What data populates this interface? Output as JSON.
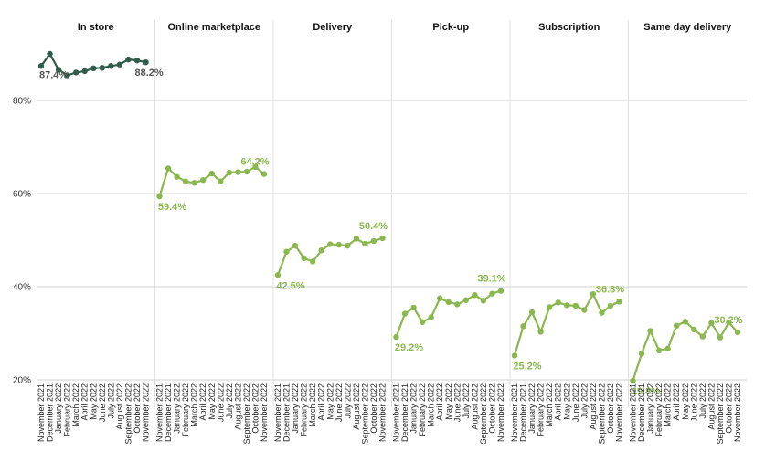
{
  "chart_data": {
    "type": "line",
    "title": "",
    "xlabel": "",
    "ylabel": "",
    "ylim": [
      17,
      92
    ],
    "yticks": [
      20,
      40,
      60,
      80
    ],
    "ytick_labels": [
      "20%",
      "40%",
      "60%",
      "80%"
    ],
    "grid": true,
    "categories": [
      "November 2021",
      "December 2021",
      "January 2022",
      "February 2022",
      "March 2022",
      "April 2022",
      "May 2022",
      "June 2022",
      "July 2022",
      "August 2022",
      "September 2022",
      "October 2022",
      "November 2022"
    ],
    "panels": [
      {
        "title": "In store",
        "color": "#2f5d4a",
        "values": [
          87.4,
          90.0,
          86.6,
          85.4,
          86.0,
          86.3,
          86.9,
          87.0,
          87.4,
          87.7,
          88.8,
          88.6,
          88.2
        ],
        "labels": {
          "first": "87.4%",
          "last": "88.2%"
        }
      },
      {
        "title": "Online marketplace",
        "color": "#8ab84f",
        "values": [
          59.4,
          65.4,
          63.6,
          62.6,
          62.3,
          62.9,
          64.3,
          62.6,
          64.5,
          64.6,
          64.7,
          65.7,
          64.2
        ],
        "labels": {
          "first": "59.4%",
          "last": "64.2%"
        }
      },
      {
        "title": "Delivery",
        "color": "#8ab84f",
        "values": [
          42.5,
          47.5,
          48.8,
          46.1,
          45.4,
          47.8,
          49.1,
          49.0,
          48.8,
          50.3,
          49.2,
          49.8,
          50.4
        ],
        "labels": {
          "first": "42.5%",
          "last": "50.4%"
        }
      },
      {
        "title": "Pick-up",
        "color": "#8ab84f",
        "values": [
          29.2,
          34.2,
          35.5,
          32.4,
          33.4,
          37.5,
          36.7,
          36.2,
          37.1,
          38.2,
          37.0,
          38.5,
          39.1
        ],
        "labels": {
          "first": "29.2%",
          "last": "39.1%"
        }
      },
      {
        "title": "Subscription",
        "color": "#8ab84f",
        "values": [
          25.2,
          31.5,
          34.5,
          30.3,
          35.6,
          36.6,
          36.0,
          35.9,
          35.0,
          38.4,
          34.4,
          35.9,
          36.8
        ],
        "labels": {
          "first": "25.2%",
          "last": "36.8%"
        }
      },
      {
        "title": "Same day delivery",
        "color": "#8ab84f",
        "values": [
          19.8,
          25.6,
          30.5,
          26.3,
          26.7,
          31.6,
          32.5,
          30.8,
          29.3,
          32.2,
          29.1,
          32.3,
          30.2
        ],
        "labels": {
          "first": "19.8%",
          "last": "30.2%"
        }
      }
    ]
  }
}
